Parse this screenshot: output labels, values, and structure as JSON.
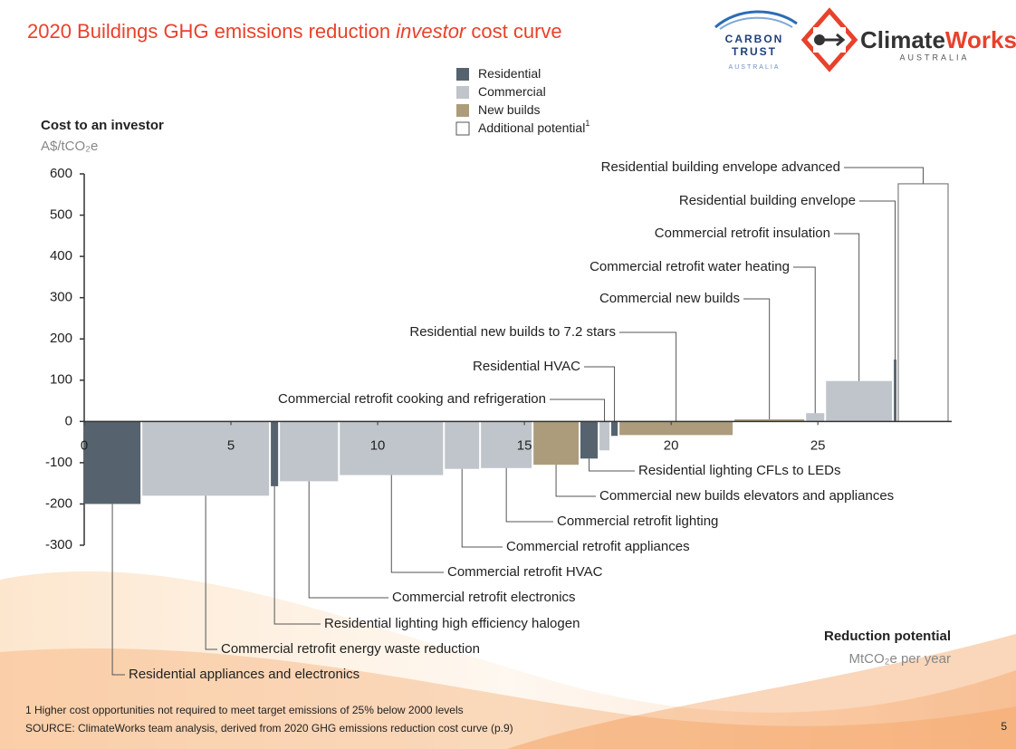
{
  "header": {
    "title_parts": [
      "2020 Buildings GHG emissions reduction ",
      "investor",
      " cost curve"
    ],
    "logo_left": [
      "CARBON",
      "TRUST",
      "AUSTRALIA"
    ],
    "logo_right": [
      "Climate",
      "Works",
      "AUSTRALIA"
    ]
  },
  "chart_data": {
    "type": "cost_curve",
    "y_label": "Cost to an investor",
    "y_unit": "A$/tCO₂e",
    "x_label": "Reduction potential",
    "x_unit": "MtCO₂e per year",
    "segments": [
      {
        "name": "Residential",
        "color": "#56636f"
      },
      {
        "name": "Commercial",
        "color": "#bfc5ca"
      },
      {
        "name": "New builds",
        "color": "#ad9c7c"
      },
      {
        "name": "Additional potential",
        "color": "#ffffff",
        "note": "1"
      }
    ],
    "bars": [
      {
        "label": "Residential appliances and electronics",
        "segment": 0,
        "width": 1.98,
        "value": -200
      },
      {
        "label": "Commercial retrofit energy waste reduction",
        "segment": 1,
        "width": 4.38,
        "value": -180
      },
      {
        "label": "Residential lighting high efficiency halogen",
        "segment": 0,
        "width": 0.31,
        "value": -157
      },
      {
        "label": "Commercial retrofit electronics",
        "segment": 1,
        "width": 2.04,
        "value": -145
      },
      {
        "label": "Commercial retrofit HVAC",
        "segment": 1,
        "width": 3.58,
        "value": -130
      },
      {
        "label": "Commercial retrofit appliances",
        "segment": 1,
        "width": 1.23,
        "value": -115
      },
      {
        "label": "Commercial retrofit lighting",
        "segment": 1,
        "width": 1.79,
        "value": -113
      },
      {
        "label": "Commercial new builds elevators and appliances",
        "segment": 2,
        "width": 1.6,
        "value": -105
      },
      {
        "label": "Residential lighting CFLs to LEDs",
        "segment": 0,
        "width": 0.65,
        "value": -90
      },
      {
        "label": "Commercial retrofit cooking and refrigeration",
        "segment": 1,
        "width": 0.4,
        "value": -70
      },
      {
        "label": "Residential HVAC",
        "segment": 0,
        "width": 0.28,
        "value": -35
      },
      {
        "label": "Residential new builds to 7.2 stars",
        "segment": 2,
        "width": 3.92,
        "value": -33
      },
      {
        "label": "Commercial new builds",
        "segment": 2,
        "width": 2.44,
        "value": 5
      },
      {
        "label": "Commercial retrofit water heating",
        "segment": 1,
        "width": 0.68,
        "value": 20
      },
      {
        "label": "Commercial retrofit insulation",
        "segment": 1,
        "width": 2.31,
        "value": 98
      },
      {
        "label": "Residential building envelope",
        "segment": 0,
        "width": 0.15,
        "value": 150
      },
      {
        "label": "Residential building envelope advanced",
        "segment": 3,
        "width": 1.76,
        "value": 576
      }
    ],
    "xlim": [
      0,
      29.5
    ],
    "xticks": [
      0,
      5,
      10,
      15,
      20,
      25
    ],
    "ylim": [
      -300,
      600
    ],
    "yticks": [
      -300,
      -200,
      -100,
      0,
      100,
      200,
      300,
      400,
      500,
      600
    ]
  },
  "footer": {
    "footnote": "1 Higher cost opportunities not required to meet target emissions of 25% below 2000 levels",
    "source": "SOURCE: ClimateWorks team analysis, derived from 2020 GHG emissions reduction cost curve (p.9)",
    "page": "5"
  }
}
